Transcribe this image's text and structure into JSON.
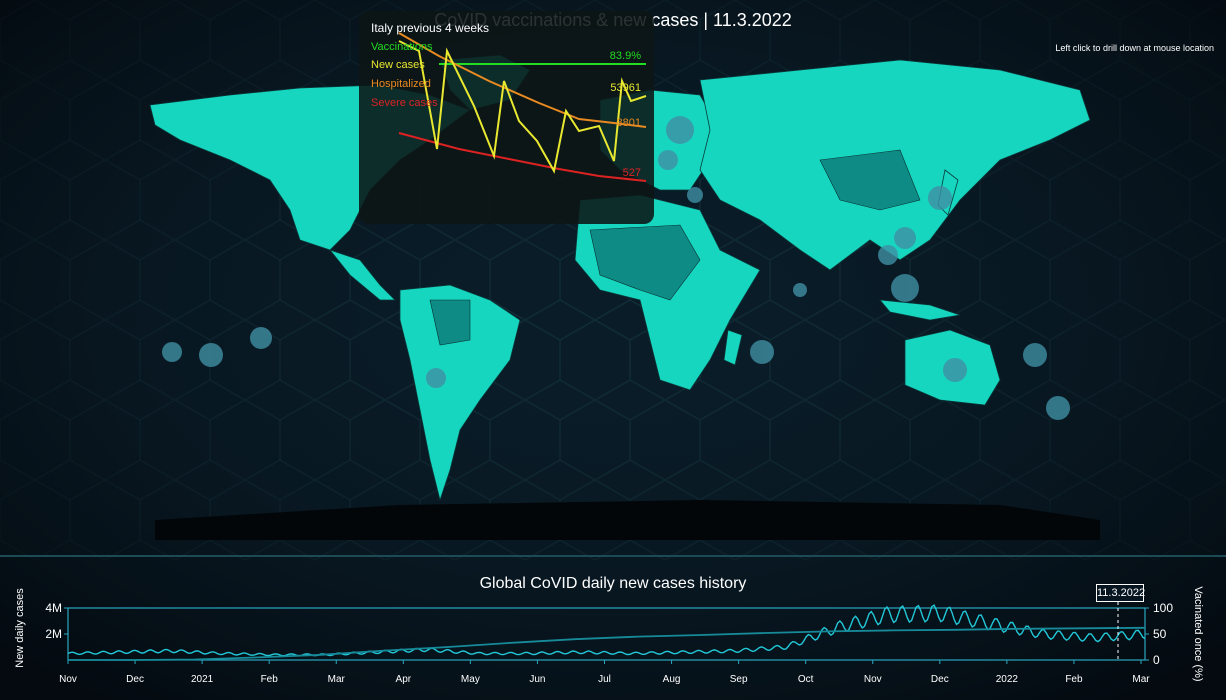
{
  "title": "CoVID vaccinations & new cases | 11.3.2022",
  "hint": "Left click to drill down at mouse location",
  "tooltip": {
    "title": "Italy previous 4 weeks",
    "legend": [
      {
        "label": "Vaccinations",
        "color": "#22dd22"
      },
      {
        "label": "New cases",
        "color": "#e8e830"
      },
      {
        "label": "Hospitalized",
        "color": "#e88a20"
      },
      {
        "label": "Severe cases",
        "color": "#dd2222"
      }
    ],
    "values": {
      "vaccinations": "83.9%",
      "new_cases": "53961",
      "hospitalized": "8801",
      "severe": "527"
    }
  },
  "bottom": {
    "title": "Global CoVID daily new cases history",
    "ylabel_left": "New daily cases",
    "ylabel_right": "Vacinated once (%)",
    "date_badge": "11.3.2022"
  },
  "chart_data": [
    {
      "type": "line",
      "title": "Italy previous 4 weeks",
      "series": [
        {
          "name": "Vaccinations",
          "color": "#22dd22",
          "values": [
            83.9,
            83.9,
            83.9,
            83.9,
            83.9,
            83.9,
            83.9,
            83.9,
            83.9,
            83.9
          ]
        },
        {
          "name": "New cases",
          "color": "#e8e830",
          "values": [
            140000,
            100000,
            40000,
            125000,
            65000,
            38000,
            120000,
            70000,
            35000,
            90000,
            60000,
            35000,
            80000,
            65000,
            53961
          ]
        },
        {
          "name": "Hospitalized",
          "color": "#e88a20",
          "values": [
            19500,
            17000,
            14500,
            12500,
            11000,
            10000,
            9200,
            8801
          ]
        },
        {
          "name": "Severe cases",
          "color": "#dd2222",
          "values": [
            1450,
            1250,
            1050,
            880,
            750,
            640,
            560,
            527
          ]
        }
      ]
    },
    {
      "type": "line",
      "title": "Global CoVID daily new cases history",
      "x_ticks": [
        "Nov",
        "Dec",
        "2021",
        "Feb",
        "Mar",
        "Apr",
        "May",
        "Jun",
        "Jul",
        "Aug",
        "Sep",
        "Oct",
        "Nov",
        "Dec",
        "2022",
        "Feb",
        "Mar"
      ],
      "y_ticks_left": [
        "2M",
        "4M"
      ],
      "y_ticks_right": [
        "0",
        "50",
        "100"
      ],
      "ylabel_left": "New daily cases",
      "ylabel_right": "Vacinated once (%)",
      "ylim_left": [
        0,
        4000000
      ],
      "ylim_right": [
        0,
        100
      ],
      "series": [
        {
          "name": "New daily cases",
          "values": [
            0.5,
            0.6,
            0.7,
            0.5,
            0.4,
            0.4,
            0.6,
            0.8,
            0.5,
            0.5,
            0.6,
            0.5,
            0.6,
            0.7,
            1.0,
            2.5,
            3.5,
            3.6,
            2.8,
            2.0,
            1.7,
            2.0
          ]
        },
        {
          "name": "Vacinated once (%)",
          "values": [
            0,
            0,
            1,
            5,
            10,
            18,
            25,
            33,
            40,
            45,
            48,
            52,
            55,
            57,
            58,
            60,
            61,
            62
          ]
        }
      ]
    }
  ]
}
